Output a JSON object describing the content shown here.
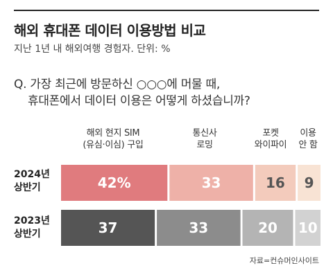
{
  "title": "해외 휴대폰 데이터 이용방법 비교",
  "subtitle": "지난 1년 내 해외여행 경험자. 단위: %",
  "question": {
    "line1": "Q. 가장 최근에 방문하신 ○○○에 머물 때,",
    "line2": "휴대폰에서 데이터 이용은 어떻게 하셨습니까?"
  },
  "source": "자료=컨슈머인사이트",
  "colors": {
    "2024": [
      "#e07b7e",
      "#eeb1a8",
      "#f3cbbc",
      "#f8e3d4"
    ],
    "2023": [
      "#555555",
      "#8c8c8c",
      "#b4b4b4",
      "#d2d2d2"
    ],
    "text_2024": [
      "#ffffff",
      "#ffffff",
      "#555555",
      "#555555"
    ],
    "text_2023": [
      "#ffffff",
      "#ffffff",
      "#ffffff",
      "#ffffff"
    ]
  },
  "chart_data": {
    "type": "bar",
    "orientation": "horizontal",
    "stacked": true,
    "categories": [
      "해외 현지 SIM\n(유심·이심) 구입",
      "통신사\n로밍",
      "포켓\n와이파이",
      "이용\n안 함"
    ],
    "series": [
      {
        "name": "2024년\n상반기",
        "values": [
          42,
          33,
          16,
          9
        ],
        "labels": [
          "42%",
          "33",
          "16",
          "9"
        ]
      },
      {
        "name": "2023년\n상반기",
        "values": [
          37,
          33,
          20,
          10
        ],
        "labels": [
          "37",
          "33",
          "20",
          "10"
        ]
      }
    ],
    "xlim": [
      0,
      100
    ]
  }
}
